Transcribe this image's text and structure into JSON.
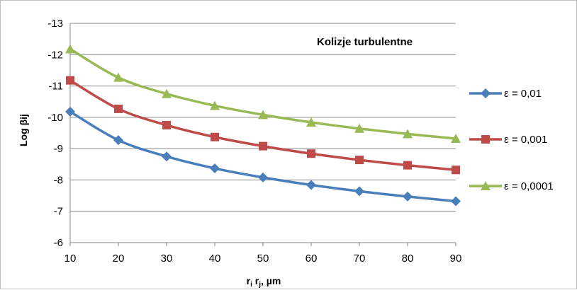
{
  "chart_data": {
    "type": "line",
    "annotation": "Kolizje turbulentne",
    "xlabel": {
      "main": "r",
      "sub1": "i",
      "mid": " r",
      "sub2": "j",
      "tail": ", µm"
    },
    "ylabel": "Log βij",
    "x": [
      10,
      20,
      30,
      40,
      50,
      60,
      70,
      80,
      90
    ],
    "xlim": [
      10,
      90
    ],
    "ylim": [
      -6,
      -13
    ],
    "y_axis_reversed": true,
    "y_ticks": [
      -13,
      -12,
      -11,
      -10,
      -9,
      -8,
      -7,
      -6
    ],
    "y_tick_labels": [
      "-13",
      "-12",
      "-11",
      "-10",
      "-9",
      "-8",
      "-7",
      "-6"
    ],
    "x_tick_labels": [
      "10",
      "20",
      "30",
      "40",
      "50",
      "60",
      "70",
      "80",
      "90"
    ],
    "grid": "horizontal",
    "legend_position": "right",
    "series": [
      {
        "name": "ε = 0,01",
        "color": "#4a7ebb",
        "marker": "diamond",
        "values": [
          -10.18,
          -9.27,
          -8.75,
          -8.37,
          -8.08,
          -7.84,
          -7.64,
          -7.47,
          -7.32
        ]
      },
      {
        "name": "ε = 0,001",
        "color": "#be4b48",
        "marker": "square",
        "values": [
          -11.18,
          -10.27,
          -9.75,
          -9.37,
          -9.08,
          -8.84,
          -8.64,
          -8.47,
          -8.32
        ]
      },
      {
        "name": "ε = 0,0001",
        "color": "#98b954",
        "marker": "triangle",
        "values": [
          -12.18,
          -11.27,
          -10.75,
          -10.37,
          -10.08,
          -9.84,
          -9.64,
          -9.47,
          -9.32
        ]
      }
    ]
  }
}
